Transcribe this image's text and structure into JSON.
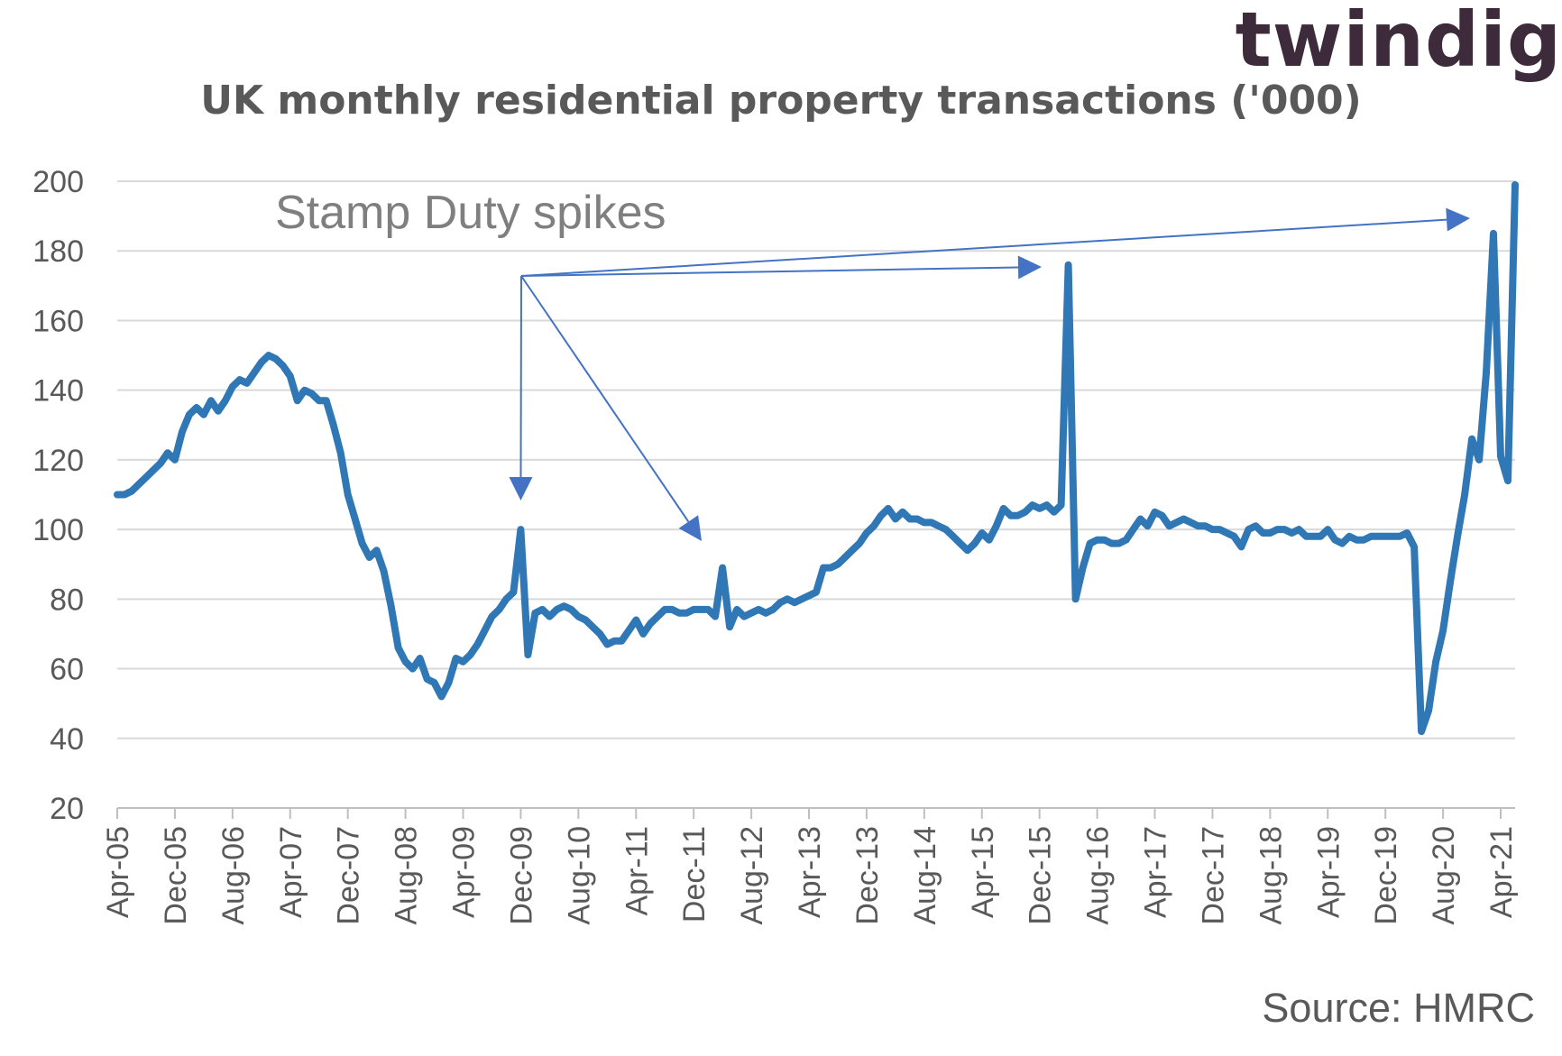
{
  "brand": {
    "logo_text": "twindig",
    "accent": "#f47a3a",
    "logo_color": "#3d2a3a"
  },
  "source": "Source: HMRC",
  "annotation": "Stamp Duty spikes",
  "colors": {
    "line": "#2f77b5",
    "arrow": "#4472c4",
    "grid": "#d9d9d9"
  },
  "chart_data": {
    "type": "line",
    "title": "UK monthly residential property transactions ('000)",
    "xlabel": "",
    "ylabel": "",
    "ylim": [
      20,
      200
    ],
    "yticks": [
      20,
      40,
      60,
      80,
      100,
      120,
      140,
      160,
      180,
      200
    ],
    "grid": true,
    "legend": "none",
    "x_tick_labels": [
      "Apr-05",
      "Dec-05",
      "Aug-06",
      "Apr-07",
      "Dec-07",
      "Aug-08",
      "Apr-09",
      "Dec-09",
      "Aug-10",
      "Apr-11",
      "Dec-11",
      "Aug-12",
      "Apr-13",
      "Dec-13",
      "Aug-14",
      "Apr-15",
      "Dec-15",
      "Aug-16",
      "Apr-17",
      "Dec-17",
      "Aug-18",
      "Apr-19",
      "Dec-19",
      "Aug-20",
      "Apr-21"
    ],
    "x_start": "Apr-05",
    "x_end": "Jun-21",
    "series": [
      {
        "name": "",
        "values": [
          110,
          110,
          111,
          113,
          115,
          117,
          119,
          122,
          120,
          128,
          133,
          135,
          133,
          137,
          134,
          137,
          141,
          143,
          142,
          145,
          148,
          150,
          149,
          147,
          144,
          137,
          140,
          139,
          137,
          137,
          130,
          122,
          110,
          103,
          96,
          92,
          94,
          88,
          78,
          66,
          62,
          60,
          63,
          57,
          56,
          52,
          56,
          63,
          62,
          64,
          67,
          71,
          75,
          77,
          80,
          82,
          100,
          64,
          76,
          77,
          75,
          77,
          78,
          77,
          75,
          74,
          72,
          70,
          67,
          68,
          68,
          71,
          74,
          70,
          73,
          75,
          77,
          77,
          76,
          76,
          77,
          77,
          77,
          75,
          89,
          72,
          77,
          75,
          76,
          77,
          76,
          77,
          79,
          80,
          79,
          80,
          81,
          82,
          89,
          89,
          90,
          92,
          94,
          96,
          99,
          101,
          104,
          106,
          103,
          105,
          103,
          103,
          102,
          102,
          101,
          100,
          98,
          96,
          94,
          96,
          99,
          97,
          101,
          106,
          104,
          104,
          105,
          107,
          106,
          107,
          105,
          107,
          176,
          80,
          89,
          96,
          97,
          97,
          96,
          96,
          97,
          100,
          103,
          101,
          105,
          104,
          101,
          102,
          103,
          102,
          101,
          101,
          100,
          100,
          99,
          98,
          95,
          100,
          101,
          99,
          99,
          100,
          100,
          99,
          100,
          98,
          98,
          98,
          100,
          97,
          96,
          98,
          97,
          97,
          98,
          98,
          98,
          98,
          98,
          99,
          95,
          42,
          48,
          62,
          71,
          85,
          98,
          110,
          126,
          120,
          145,
          185,
          121,
          114,
          199
        ]
      }
    ]
  },
  "arrows": [
    {
      "target": "Dec-09"
    },
    {
      "target": "Mar-12"
    },
    {
      "target": "Mar-16"
    },
    {
      "target": "Jun-21"
    }
  ]
}
